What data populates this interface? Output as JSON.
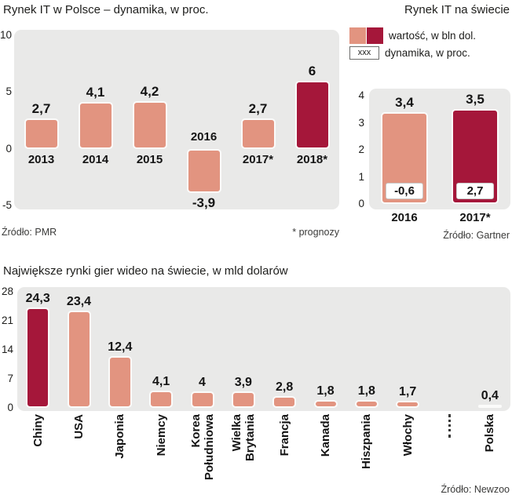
{
  "colors": {
    "bar_salmon": "#E29480",
    "bar_red": "#A5173A",
    "plot_background": "#E9E9E8"
  },
  "chart_data": [
    {
      "id": "poland-it-market",
      "type": "bar",
      "title": "Rynek IT w Polsce – dynamika, w proc.",
      "source": "Źródło: PMR",
      "footnote": "* prognozy",
      "categories": [
        "2013",
        "2014",
        "2015",
        "2016",
        "2017*",
        "2018*"
      ],
      "values": [
        2.7,
        4.1,
        4.2,
        -3.9,
        2.7,
        6
      ],
      "value_labels": [
        "2,7",
        "4,1",
        "4,2",
        "-3,9",
        "2,7",
        "6"
      ],
      "highlight_index": 5,
      "ylim": [
        -5,
        10
      ],
      "yticks": [
        "10",
        "5",
        "0",
        "-5"
      ],
      "grid": false
    },
    {
      "id": "world-it-market",
      "type": "bar",
      "title": "Rynek IT na  świecie",
      "source": "Źródło: Gartner",
      "legend": [
        {
          "swatches": [
            "#E29480",
            "#A5173A"
          ],
          "label": "wartość, w bln dol."
        },
        {
          "sample_text": "xxx",
          "label": "dynamika, w proc."
        }
      ],
      "categories": [
        "2016",
        "2017*"
      ],
      "values": [
        3.4,
        3.5
      ],
      "value_labels": [
        "3,4",
        "3,5"
      ],
      "dynamics_percent": [
        -0.6,
        2.7
      ],
      "dynamics_labels": [
        "-0,6",
        "2,7"
      ],
      "highlight_index": 1,
      "ylim": [
        0,
        4
      ],
      "yticks": [
        "4",
        "3",
        "2",
        "1",
        "0"
      ],
      "grid": false
    },
    {
      "id": "video-game-markets",
      "type": "bar",
      "title": "Największe rynki gier wideo na świecie, w mld dolarów",
      "source": "Źródło: Newzoo",
      "categories": [
        "Chiny",
        "USA",
        "Japonia",
        "Niemcy",
        "Korea\nPołudniowa",
        "Wielka\nBrytania",
        "Francja",
        "Kanada",
        "Hiszpania",
        "Włochy",
        "Polska"
      ],
      "values": [
        24.3,
        23.4,
        12.4,
        4.1,
        4,
        3.9,
        2.8,
        1.8,
        1.8,
        1.7,
        0.4
      ],
      "value_labels": [
        "24,3",
        "23,4",
        "12,4",
        "4,1",
        "4",
        "3,9",
        "2,8",
        "1,8",
        "1,8",
        "1,7",
        "0,4"
      ],
      "highlight_index": 0,
      "gap_before_index": 10,
      "ylim": [
        0,
        28
      ],
      "yticks": [
        "28",
        "21",
        "14",
        "7",
        "0"
      ],
      "grid": false
    }
  ]
}
